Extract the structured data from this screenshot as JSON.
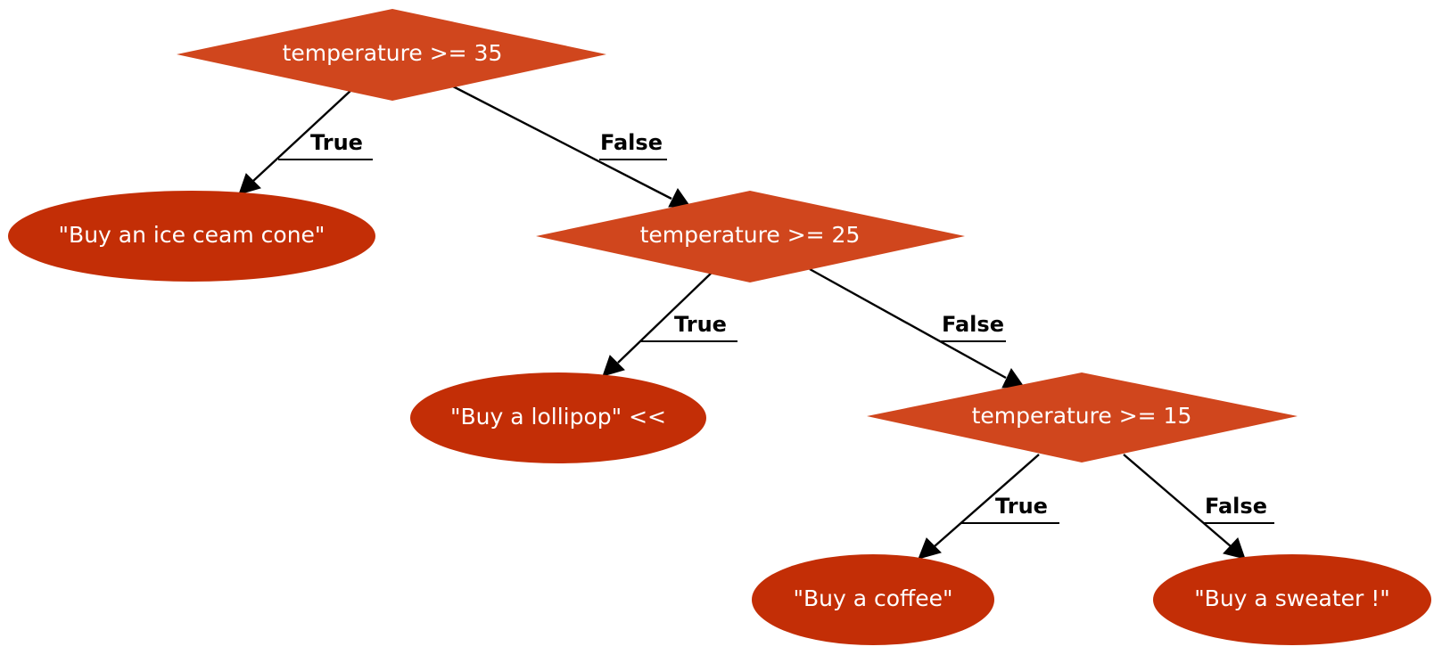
{
  "colors": {
    "decision_fill": "#d0461d",
    "leaf_fill": "#c32e06",
    "text": "#ffffff",
    "edge": "#000000"
  },
  "nodes": {
    "decision_35": "temperature >= 35",
    "decision_25": "temperature >= 25",
    "decision_15": "temperature >= 15",
    "leaf_ice_cream": "\"Buy an ice ceam cone\"",
    "leaf_lollipop": "\"Buy a lollipop\" <<",
    "leaf_coffee": "\"Buy a coffee\"",
    "leaf_sweater": "\"Buy a sweater !\""
  },
  "edges": {
    "e1_label": "True",
    "e2_label": "False",
    "e3_label": "True",
    "e4_label": "False",
    "e5_label": "True",
    "e6_label": "False"
  }
}
